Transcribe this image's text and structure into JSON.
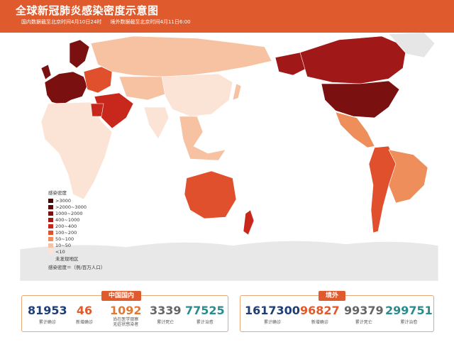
{
  "header": {
    "title": "全球新冠肺炎感染密度示意图",
    "sub_domestic": "国内数据截至北京时间4月10日24时",
    "sub_overseas": "境外数据截至北京时间4月11日6:00"
  },
  "legend": {
    "title": "感染密度",
    "items": [
      {
        "label": ">3000",
        "color": "#3d0707"
      },
      {
        "label": ">2000~3000",
        "color": "#5a0b0b"
      },
      {
        "label": "1000~2000",
        "color": "#7a1010"
      },
      {
        "label": "400~1000",
        "color": "#a01818"
      },
      {
        "label": "200~400",
        "color": "#c8281c"
      },
      {
        "label": "100~200",
        "color": "#e0502c"
      },
      {
        "label": "50~100",
        "color": "#ee8e5a"
      },
      {
        "label": "10~50",
        "color": "#f6c2a2"
      },
      {
        "label": "<10",
        "color": "#fbe4d6"
      },
      {
        "label": "未发现地区",
        "color": "#e6e6e6"
      }
    ],
    "footnote": "感染密度＝（例/百万人口）"
  },
  "domestic": {
    "tag": "中国国内",
    "confirmed": {
      "value": "81953",
      "label": "累计确诊"
    },
    "new_confirmed": {
      "value": "46",
      "label": "新增确诊"
    },
    "asymptomatic": {
      "value": "1092",
      "label_line1": "尚在医学观察",
      "label_line2": "无症状感染者"
    },
    "deaths": {
      "value": "3339",
      "label": "累计死亡"
    },
    "recovered": {
      "value": "77525",
      "label": "累计治愈"
    }
  },
  "overseas": {
    "tag": "境外",
    "confirmed": {
      "value": "1617300",
      "label": "累计确诊"
    },
    "new_confirmed": {
      "value": "96827",
      "label": "新增确诊"
    },
    "deaths": {
      "value": "99379",
      "label": "累计死亡"
    },
    "recovered": {
      "value": "299751",
      "label": "累计治愈"
    }
  },
  "map_colors": {
    "ocean": "#ffffff",
    "antarctica": "#e8e8e8",
    "china": "#fbe4d6",
    "russia": "#f6c2a2",
    "usa": "#7a1010",
    "canada": "#a01818",
    "alaska": "#a01818",
    "greenland": "#e6e6e6",
    "europe_west": "#7a1010",
    "europe_east": "#e0502c",
    "australia": "#e0502c",
    "newzealand": "#c8281c",
    "brazil": "#ee8e5a",
    "south_america_rest": "#e0502c",
    "africa": "#fbe4d6",
    "middle_east": "#c8281c",
    "india": "#fbe4d6",
    "central_asia": "#f6c2a2",
    "se_asia": "#f6c2a2"
  }
}
